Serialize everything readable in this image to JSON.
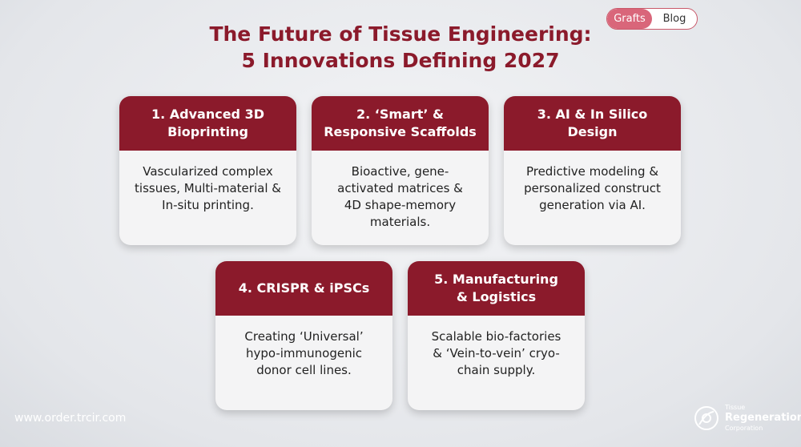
{
  "nav": {
    "tabs": [
      "Grafts",
      "Blog"
    ]
  },
  "header": {
    "title_lines": [
      "The Future of Tissue Engineering:",
      "5 Innovations Defining 2027"
    ]
  },
  "cards": [
    {
      "title_lines": [
        "1. Advanced 3D",
        "Bioprinting"
      ],
      "body_lines": [
        "Vascularized complex",
        "tissues, Multi-material &",
        "In-situ printing."
      ]
    },
    {
      "title_lines": [
        "2. ‘Smart’ &",
        "Responsive Scaffolds"
      ],
      "body_lines": [
        "Bioactive, gene-",
        "activated matrices &",
        "4D shape-memory",
        "materials."
      ]
    },
    {
      "title_lines": [
        "3. AI & In Silico",
        "Design"
      ],
      "body_lines": [
        "Predictive modeling &",
        "personalized construct",
        "generation via AI."
      ]
    },
    {
      "title_lines": [
        "4. CRISPR & iPSCs"
      ],
      "body_lines": [
        "Creating ‘Universal’",
        "hypo-immunogenic",
        "donor cell lines."
      ]
    },
    {
      "title_lines": [
        "5. Manufacturing",
        "& Logistics"
      ],
      "body_lines": [
        "Scalable bio-factories",
        "& ‘Vein-to-vein’ cryo-",
        "chain supply."
      ]
    }
  ],
  "footer": {
    "url": "www.order.trcir.com",
    "logo_lines": [
      "Tissue",
      "Regeneration",
      "Corporation"
    ]
  }
}
